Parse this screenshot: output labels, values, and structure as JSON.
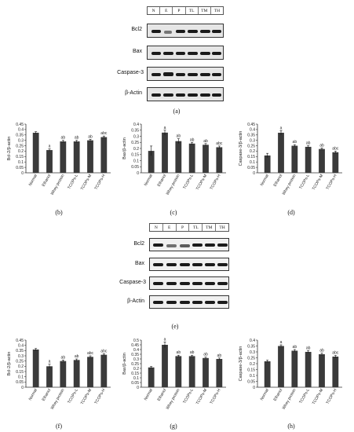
{
  "blot_top": {
    "lanes": [
      "N",
      "E",
      "P",
      "TL",
      "TM",
      "TH"
    ],
    "proteins": [
      "Bcl2",
      "Bax",
      "Caspase-3",
      "β-Actin"
    ],
    "label": "(a)"
  },
  "blot_bottom": {
    "lanes": [
      "N",
      "E",
      "P",
      "TL",
      "TM",
      "TH"
    ],
    "proteins": [
      "Bcl2",
      "Bax",
      "Caspase-3",
      "β-Actin"
    ],
    "label": "(e)"
  },
  "chart_data": [
    {
      "type": "bar",
      "panel": "(b)",
      "ylabel": "Bcl-2/β-actin",
      "ylim": [
        0,
        0.45
      ],
      "yticks": [
        "0",
        "0.05",
        "0.1",
        "0.15",
        "0.2",
        "0.25",
        "0.3",
        "0.35",
        "0.4",
        "0.45"
      ],
      "categories": [
        "Normal",
        "Ethanol",
        "Whey protein",
        "TCOPs-L",
        "TCOPs-M",
        "TCOPs-H"
      ],
      "values": [
        0.37,
        0.21,
        0.29,
        0.29,
        0.3,
        0.33
      ],
      "errors": [
        0.01,
        0.01,
        0.01,
        0.01,
        0.01,
        0.01
      ],
      "annotations": [
        "",
        "a",
        "ab",
        "ab",
        "ab",
        "abc"
      ]
    },
    {
      "type": "bar",
      "panel": "(c)",
      "ylabel": "Bax/β-actin",
      "ylim": [
        0,
        0.4
      ],
      "yticks": [
        "0",
        "0.05",
        "0.1",
        "0.15",
        "0.2",
        "0.25",
        "0.3",
        "0.35",
        "0.4"
      ],
      "categories": [
        "Normal",
        "Ethanol",
        "Whey protein",
        "TCOPs-L",
        "TCOPs-M",
        "TCOPs-H"
      ],
      "values": [
        0.18,
        0.33,
        0.26,
        0.24,
        0.23,
        0.21
      ],
      "errors": [
        0.04,
        0.02,
        0.02,
        0.01,
        0.01,
        0.01
      ],
      "annotations": [
        "",
        "a",
        "ab",
        "ab",
        "ab",
        "abc"
      ]
    },
    {
      "type": "bar",
      "panel": "(d)",
      "ylabel": "Caspase-3/β-actin",
      "ylim": [
        0,
        0.45
      ],
      "yticks": [
        "0",
        "0.05",
        "0.1",
        "0.15",
        "0.2",
        "0.25",
        "0.3",
        "0.35",
        "0.4",
        "0.45"
      ],
      "categories": [
        "Normal",
        "Ethanol",
        "Whey protein",
        "TCOPs-L",
        "TCOPs-M",
        "TCOPs-H"
      ],
      "values": [
        0.16,
        0.37,
        0.25,
        0.24,
        0.22,
        0.19
      ],
      "errors": [
        0.02,
        0.02,
        0.01,
        0.01,
        0.01,
        0.01
      ],
      "annotations": [
        "",
        "a",
        "ab",
        "ab",
        "ab",
        "abc"
      ]
    },
    {
      "type": "bar",
      "panel": "(f)",
      "ylabel": "Bcl-2/β-actin",
      "ylim": [
        0,
        0.45
      ],
      "yticks": [
        "0",
        "0.05",
        "0.1",
        "0.15",
        "0.2",
        "0.25",
        "0.3",
        "0.35",
        "0.4",
        "0.45"
      ],
      "categories": [
        "Normal",
        "Ethanol",
        "Whey protein",
        "TCOPs-L",
        "TCOPs-M",
        "TCOPs-H"
      ],
      "values": [
        0.36,
        0.2,
        0.25,
        0.26,
        0.29,
        0.31
      ],
      "errors": [
        0.01,
        0.02,
        0.01,
        0.01,
        0.01,
        0.01
      ],
      "annotations": [
        "",
        "a",
        "ab",
        "ab",
        "abc",
        "abc"
      ]
    },
    {
      "type": "bar",
      "panel": "(g)",
      "ylabel": "Bax/β-actin",
      "ylim": [
        0,
        0.5
      ],
      "yticks": [
        "0",
        "0.05",
        "0.1",
        "0.15",
        "0.2",
        "0.25",
        "0.3",
        "0.35",
        "0.4",
        "0.45",
        "0.5"
      ],
      "categories": [
        "Normal",
        "Ethanol",
        "Whey protein",
        "TCOPs-L",
        "TCOPs-M",
        "TCOPs-H"
      ],
      "values": [
        0.21,
        0.45,
        0.33,
        0.33,
        0.31,
        0.3
      ],
      "errors": [
        0.01,
        0.03,
        0.01,
        0.01,
        0.01,
        0.01
      ],
      "annotations": [
        "",
        "a",
        "ab",
        "ab",
        "ab",
        "ab"
      ]
    },
    {
      "type": "bar",
      "panel": "(h)",
      "ylabel": "Caspase-3/β-actin",
      "ylim": [
        0,
        0.4
      ],
      "yticks": [
        "0",
        "0.05",
        "0.1",
        "0.15",
        "0.2",
        "0.25",
        "0.3",
        "0.35",
        "0.4"
      ],
      "categories": [
        "Normal",
        "Ethanol",
        "Whey protein",
        "TCOPs-L",
        "TCOPs-M",
        "TCOPs-H"
      ],
      "values": [
        0.22,
        0.35,
        0.31,
        0.3,
        0.28,
        0.26
      ],
      "errors": [
        0.01,
        0.01,
        0.01,
        0.01,
        0.01,
        0.01
      ],
      "annotations": [
        "",
        "a",
        "ab",
        "ab",
        "ab",
        "abc"
      ]
    }
  ]
}
